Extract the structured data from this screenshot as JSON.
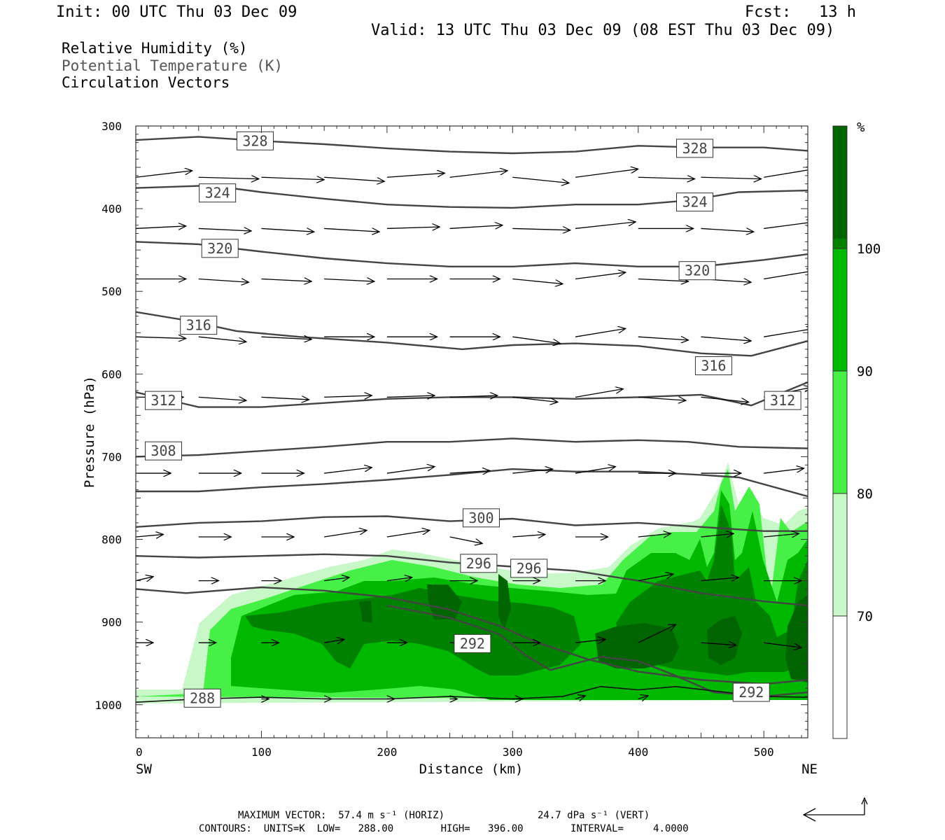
{
  "header": {
    "init": "Init: 00 UTC Thu 03 Dec 09",
    "fcst": "Fcst:   13 h",
    "valid": "Valid: 13 UTC Thu 03 Dec 09 (08 EST Thu 03 Dec 09)"
  },
  "legend": {
    "rh": "Relative Humidity (%)",
    "theta": "Potential Temperature (K)",
    "vectors": "Circulation Vectors"
  },
  "colors": {
    "rh70": "#c8f7c8",
    "rh80": "#46f046",
    "rh90": "#00b800",
    "rh100": "#008200",
    "rh_top": "#006400",
    "contour": "#444444",
    "frame": "#333333"
  },
  "chart_data": {
    "type": "cross-section contour",
    "xlabel": "Distance (km)",
    "ylabel": "Pressure (hPa)",
    "x_left_end": "SW",
    "x_right_end": "NE",
    "xlim": [
      0,
      535
    ],
    "ylim": [
      1040,
      300
    ],
    "x_ticks": [
      0,
      100,
      200,
      300,
      400,
      500
    ],
    "y_ticks": [
      300,
      400,
      500,
      600,
      700,
      800,
      900,
      1000
    ],
    "colorbar": {
      "unit": "%",
      "levels": [
        70,
        80,
        90,
        100
      ],
      "colors": [
        "#ffffff",
        "#c8f7c8",
        "#46f046",
        "#00b800",
        "#008200",
        "#006400"
      ]
    },
    "theta_contours": [
      {
        "label": "328",
        "points": [
          [
            0,
            317
          ],
          [
            50,
            313
          ],
          [
            100,
            318
          ],
          [
            150,
            322
          ],
          [
            200,
            327
          ],
          [
            250,
            331
          ],
          [
            300,
            333
          ],
          [
            350,
            331
          ],
          [
            400,
            324
          ],
          [
            450,
            326
          ],
          [
            500,
            326
          ],
          [
            535,
            330
          ]
        ]
      },
      {
        "label": "324",
        "points": [
          [
            0,
            375
          ],
          [
            60,
            372
          ],
          [
            100,
            380
          ],
          [
            150,
            388
          ],
          [
            200,
            395
          ],
          [
            250,
            398
          ],
          [
            300,
            399
          ],
          [
            350,
            395
          ],
          [
            400,
            395
          ],
          [
            440,
            390
          ],
          [
            480,
            380
          ],
          [
            535,
            378
          ]
        ]
      },
      {
        "label": "320",
        "points": [
          [
            0,
            440
          ],
          [
            50,
            443
          ],
          [
            100,
            452
          ],
          [
            150,
            460
          ],
          [
            200,
            466
          ],
          [
            250,
            470
          ],
          [
            300,
            470
          ],
          [
            350,
            466
          ],
          [
            400,
            470
          ],
          [
            450,
            470
          ],
          [
            500,
            462
          ],
          [
            535,
            455
          ]
        ]
      },
      {
        "label": "316",
        "points": [
          [
            0,
            525
          ],
          [
            40,
            535
          ],
          [
            80,
            548
          ],
          [
            130,
            555
          ],
          [
            200,
            562
          ],
          [
            260,
            570
          ],
          [
            300,
            565
          ],
          [
            350,
            563
          ],
          [
            400,
            566
          ],
          [
            450,
            575
          ],
          [
            490,
            578
          ],
          [
            535,
            560
          ]
        ]
      },
      {
        "label": "312",
        "points": [
          [
            0,
            622
          ],
          [
            50,
            640
          ],
          [
            100,
            640
          ],
          [
            150,
            635
          ],
          [
            200,
            630
          ],
          [
            250,
            628
          ],
          [
            300,
            628
          ],
          [
            350,
            630
          ],
          [
            400,
            628
          ],
          [
            450,
            625
          ],
          [
            490,
            638
          ],
          [
            535,
            610
          ]
        ]
      },
      {
        "label": "308",
        "points": [
          [
            0,
            700
          ],
          [
            50,
            698
          ],
          [
            100,
            693
          ],
          [
            150,
            688
          ],
          [
            200,
            682
          ],
          [
            250,
            682
          ],
          [
            300,
            678
          ],
          [
            350,
            682
          ],
          [
            400,
            680
          ],
          [
            440,
            682
          ],
          [
            480,
            688
          ],
          [
            535,
            690
          ]
        ]
      },
      {
        "label": "",
        "points": [
          [
            0,
            742
          ],
          [
            50,
            742
          ],
          [
            100,
            737
          ],
          [
            150,
            733
          ],
          [
            200,
            728
          ],
          [
            250,
            722
          ],
          [
            300,
            715
          ],
          [
            350,
            718
          ],
          [
            400,
            718
          ],
          [
            450,
            722
          ],
          [
            480,
            725
          ],
          [
            535,
            748
          ]
        ]
      },
      {
        "label": "300",
        "points": [
          [
            0,
            785
          ],
          [
            50,
            780
          ],
          [
            100,
            778
          ],
          [
            150,
            773
          ],
          [
            200,
            772
          ],
          [
            250,
            778
          ],
          [
            300,
            775
          ],
          [
            350,
            783
          ],
          [
            400,
            780
          ],
          [
            450,
            785
          ],
          [
            500,
            790
          ],
          [
            535,
            790
          ]
        ]
      },
      {
        "label": "296",
        "points": [
          [
            0,
            820
          ],
          [
            50,
            822
          ],
          [
            100,
            820
          ],
          [
            150,
            818
          ],
          [
            200,
            820
          ],
          [
            250,
            828
          ],
          [
            300,
            833
          ],
          [
            350,
            838
          ],
          [
            400,
            850
          ],
          [
            450,
            865
          ],
          [
            500,
            875
          ],
          [
            535,
            880
          ]
        ]
      },
      {
        "label": "",
        "points": [
          [
            0,
            860
          ],
          [
            40,
            865
          ],
          [
            100,
            858
          ],
          [
            150,
            862
          ],
          [
            200,
            870
          ],
          [
            250,
            885
          ],
          [
            290,
            905
          ],
          [
            320,
            925
          ],
          [
            360,
            945
          ],
          [
            400,
            960
          ],
          [
            450,
            970
          ],
          [
            500,
            975
          ],
          [
            535,
            970
          ]
        ]
      },
      {
        "label": "292",
        "points": [
          [
            200,
            880
          ],
          [
            250,
            895
          ],
          [
            290,
            915
          ],
          [
            310,
            940
          ],
          [
            330,
            958
          ],
          [
            350,
            950
          ],
          [
            370,
            942
          ],
          [
            400,
            947
          ],
          [
            430,
            965
          ],
          [
            460,
            985
          ],
          [
            500,
            990
          ],
          [
            535,
            985
          ]
        ]
      },
      {
        "label": "288",
        "points": [
          [
            0,
            997
          ],
          [
            50,
            993
          ],
          [
            100,
            991
          ],
          [
            150,
            993
          ],
          [
            200,
            993
          ],
          [
            250,
            990
          ],
          [
            300,
            993
          ],
          [
            340,
            990
          ],
          [
            370,
            978
          ],
          [
            400,
            982
          ],
          [
            430,
            978
          ],
          [
            470,
            985
          ],
          [
            500,
            990
          ],
          [
            535,
            991
          ]
        ]
      }
    ],
    "max_vector_horiz": "57.4 m s⁻¹ (HORIZ)",
    "max_vector_vert": "24.7 dPa s⁻¹ (VERT)",
    "contour_units": "K",
    "contour_low": 288.0,
    "contour_high": 396.0,
    "contour_interval": 4.0
  },
  "footer": {
    "line1a": "MAXIMUM VECTOR:  57.4 m s⁻¹ (HORIZ)",
    "line1b": "24.7 dPa s⁻¹ (VERT)",
    "line2": "CONTOURS:  UNITS=K  LOW=   288.00        HIGH=   396.00        INTERVAL=     4.0000"
  }
}
